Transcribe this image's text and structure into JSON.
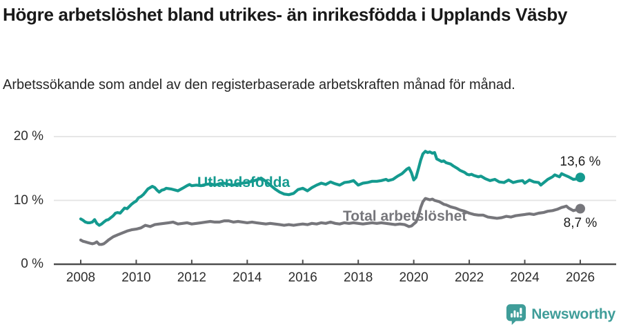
{
  "header": {
    "title": "Högre arbetslöshet bland utrikes- än inrikesfödda i Upplands Väsby",
    "subtitle": "Arbetssökande som andel av den registerbaserade arbetskraften månad för månad."
  },
  "footer": {
    "brand": "Newsworthy",
    "brand_color": "#3f9d99",
    "logo_icon": "newsworthy-speech-bubble-bar-chart-icon"
  },
  "chart_data": {
    "type": "line",
    "title": "Högre arbetslöshet bland utrikes- än inrikesfödda i Upplands Väsby",
    "subtitle": "Arbetssökande som andel av den registerbaserade arbetskraften månad för månad.",
    "unit": "%",
    "x_axis": {
      "ticks": [
        2008,
        2010,
        2012,
        2014,
        2016,
        2018,
        2020,
        2022,
        2024,
        2026
      ],
      "range": [
        2007.0,
        2027.3
      ]
    },
    "y_axis": {
      "ticks": [
        {
          "value": 0,
          "label": "0 %"
        },
        {
          "value": 10,
          "label": "10 %"
        },
        {
          "value": 20,
          "label": "20 %"
        }
      ],
      "range": [
        0,
        20
      ],
      "gridlines": [
        10,
        20
      ]
    },
    "legend_position": "inline",
    "series": [
      {
        "name": "Utlandsfödda",
        "color": "#149a8f",
        "end_value": 13.6,
        "end_value_label": "13,6 %",
        "points": [
          [
            2008.0,
            7.1
          ],
          [
            2008.08,
            6.9
          ],
          [
            2008.17,
            6.6
          ],
          [
            2008.25,
            6.5
          ],
          [
            2008.33,
            6.5
          ],
          [
            2008.42,
            6.6
          ],
          [
            2008.5,
            7.0
          ],
          [
            2008.58,
            6.4
          ],
          [
            2008.67,
            6.1
          ],
          [
            2008.75,
            6.3
          ],
          [
            2008.83,
            6.6
          ],
          [
            2008.92,
            6.9
          ],
          [
            2009.0,
            7.0
          ],
          [
            2009.17,
            7.6
          ],
          [
            2009.25,
            8.0
          ],
          [
            2009.33,
            8.1
          ],
          [
            2009.42,
            8.0
          ],
          [
            2009.58,
            8.8
          ],
          [
            2009.67,
            8.7
          ],
          [
            2009.83,
            9.4
          ],
          [
            2009.92,
            9.7
          ],
          [
            2010.0,
            9.9
          ],
          [
            2010.08,
            10.4
          ],
          [
            2010.17,
            10.6
          ],
          [
            2010.25,
            10.9
          ],
          [
            2010.33,
            11.3
          ],
          [
            2010.42,
            11.8
          ],
          [
            2010.5,
            12.0
          ],
          [
            2010.58,
            12.2
          ],
          [
            2010.67,
            12.0
          ],
          [
            2010.75,
            11.6
          ],
          [
            2010.83,
            11.3
          ],
          [
            2010.92,
            11.6
          ],
          [
            2011.0,
            11.7
          ],
          [
            2011.08,
            11.9
          ],
          [
            2011.25,
            11.8
          ],
          [
            2011.42,
            11.6
          ],
          [
            2011.5,
            11.5
          ],
          [
            2011.67,
            11.9
          ],
          [
            2011.83,
            12.3
          ],
          [
            2011.92,
            12.5
          ],
          [
            2012.0,
            12.3
          ],
          [
            2012.17,
            12.4
          ],
          [
            2012.33,
            12.3
          ],
          [
            2012.5,
            12.5
          ],
          [
            2012.67,
            12.6
          ],
          [
            2012.83,
            12.4
          ],
          [
            2013.0,
            12.6
          ],
          [
            2013.17,
            12.7
          ],
          [
            2013.33,
            12.5
          ],
          [
            2013.5,
            12.4
          ],
          [
            2013.67,
            12.6
          ],
          [
            2013.83,
            12.7
          ],
          [
            2014.0,
            12.8
          ],
          [
            2014.17,
            13.0
          ],
          [
            2014.33,
            13.2
          ],
          [
            2014.5,
            13.5
          ],
          [
            2014.67,
            13.0
          ],
          [
            2014.83,
            12.4
          ],
          [
            2015.0,
            11.8
          ],
          [
            2015.17,
            11.3
          ],
          [
            2015.33,
            11.0
          ],
          [
            2015.5,
            10.9
          ],
          [
            2015.67,
            11.1
          ],
          [
            2015.83,
            11.7
          ],
          [
            2016.0,
            11.9
          ],
          [
            2016.17,
            11.5
          ],
          [
            2016.33,
            12.0
          ],
          [
            2016.5,
            12.4
          ],
          [
            2016.67,
            12.7
          ],
          [
            2016.83,
            12.5
          ],
          [
            2017.0,
            12.9
          ],
          [
            2017.17,
            12.6
          ],
          [
            2017.33,
            12.4
          ],
          [
            2017.5,
            12.8
          ],
          [
            2017.67,
            12.9
          ],
          [
            2017.83,
            13.1
          ],
          [
            2018.0,
            12.4
          ],
          [
            2018.17,
            12.7
          ],
          [
            2018.33,
            12.8
          ],
          [
            2018.5,
            13.0
          ],
          [
            2018.67,
            13.0
          ],
          [
            2018.83,
            13.1
          ],
          [
            2019.0,
            13.3
          ],
          [
            2019.08,
            13.1
          ],
          [
            2019.25,
            13.3
          ],
          [
            2019.42,
            13.8
          ],
          [
            2019.58,
            14.2
          ],
          [
            2019.75,
            14.9
          ],
          [
            2019.83,
            15.1
          ],
          [
            2019.92,
            14.3
          ],
          [
            2020.0,
            13.2
          ],
          [
            2020.08,
            13.6
          ],
          [
            2020.17,
            15.0
          ],
          [
            2020.25,
            16.3
          ],
          [
            2020.33,
            17.3
          ],
          [
            2020.42,
            17.7
          ],
          [
            2020.5,
            17.5
          ],
          [
            2020.58,
            17.6
          ],
          [
            2020.67,
            17.4
          ],
          [
            2020.75,
            17.5
          ],
          [
            2020.83,
            16.5
          ],
          [
            2020.92,
            16.3
          ],
          [
            2021.0,
            16.1
          ],
          [
            2021.08,
            16.2
          ],
          [
            2021.17,
            15.9
          ],
          [
            2021.33,
            15.7
          ],
          [
            2021.42,
            15.4
          ],
          [
            2021.58,
            15.0
          ],
          [
            2021.67,
            14.7
          ],
          [
            2021.83,
            14.4
          ],
          [
            2021.92,
            14.1
          ],
          [
            2022.0,
            14.0
          ],
          [
            2022.08,
            14.1
          ],
          [
            2022.17,
            13.9
          ],
          [
            2022.33,
            13.7
          ],
          [
            2022.42,
            13.8
          ],
          [
            2022.58,
            13.4
          ],
          [
            2022.75,
            13.1
          ],
          [
            2022.92,
            13.3
          ],
          [
            2023.0,
            13.1
          ],
          [
            2023.08,
            12.9
          ],
          [
            2023.25,
            12.8
          ],
          [
            2023.42,
            13.2
          ],
          [
            2023.58,
            12.8
          ],
          [
            2023.75,
            13.0
          ],
          [
            2023.92,
            13.1
          ],
          [
            2024.0,
            12.7
          ],
          [
            2024.17,
            13.2
          ],
          [
            2024.33,
            12.9
          ],
          [
            2024.5,
            12.8
          ],
          [
            2024.58,
            12.4
          ],
          [
            2024.83,
            13.3
          ],
          [
            2025.0,
            13.7
          ],
          [
            2025.08,
            14.0
          ],
          [
            2025.25,
            13.7
          ],
          [
            2025.33,
            14.2
          ],
          [
            2025.42,
            14.0
          ],
          [
            2025.58,
            13.7
          ],
          [
            2025.75,
            13.3
          ],
          [
            2025.92,
            13.4
          ],
          [
            2026.0,
            13.6
          ]
        ]
      },
      {
        "name": "Total arbetslöshet",
        "color": "#76767b",
        "end_value": 8.7,
        "end_value_label": "8,7 %",
        "points": [
          [
            2008.0,
            3.8
          ],
          [
            2008.08,
            3.6
          ],
          [
            2008.17,
            3.5
          ],
          [
            2008.25,
            3.4
          ],
          [
            2008.33,
            3.3
          ],
          [
            2008.42,
            3.2
          ],
          [
            2008.5,
            3.3
          ],
          [
            2008.58,
            3.5
          ],
          [
            2008.67,
            3.1
          ],
          [
            2008.75,
            3.1
          ],
          [
            2008.83,
            3.2
          ],
          [
            2008.92,
            3.5
          ],
          [
            2009.0,
            3.8
          ],
          [
            2009.17,
            4.3
          ],
          [
            2009.33,
            4.6
          ],
          [
            2009.5,
            4.9
          ],
          [
            2009.67,
            5.2
          ],
          [
            2009.83,
            5.4
          ],
          [
            2010.0,
            5.5
          ],
          [
            2010.17,
            5.7
          ],
          [
            2010.33,
            6.1
          ],
          [
            2010.5,
            5.9
          ],
          [
            2010.67,
            6.2
          ],
          [
            2010.83,
            6.3
          ],
          [
            2011.0,
            6.4
          ],
          [
            2011.17,
            6.5
          ],
          [
            2011.33,
            6.6
          ],
          [
            2011.5,
            6.3
          ],
          [
            2011.67,
            6.4
          ],
          [
            2011.83,
            6.5
          ],
          [
            2012.0,
            6.3
          ],
          [
            2012.17,
            6.4
          ],
          [
            2012.33,
            6.5
          ],
          [
            2012.5,
            6.6
          ],
          [
            2012.67,
            6.7
          ],
          [
            2012.83,
            6.6
          ],
          [
            2013.0,
            6.6
          ],
          [
            2013.17,
            6.8
          ],
          [
            2013.33,
            6.8
          ],
          [
            2013.5,
            6.6
          ],
          [
            2013.67,
            6.7
          ],
          [
            2013.83,
            6.6
          ],
          [
            2014.0,
            6.5
          ],
          [
            2014.17,
            6.6
          ],
          [
            2014.33,
            6.5
          ],
          [
            2014.5,
            6.4
          ],
          [
            2014.67,
            6.3
          ],
          [
            2014.83,
            6.4
          ],
          [
            2015.0,
            6.3
          ],
          [
            2015.17,
            6.2
          ],
          [
            2015.33,
            6.1
          ],
          [
            2015.5,
            6.2
          ],
          [
            2015.67,
            6.1
          ],
          [
            2015.83,
            6.2
          ],
          [
            2016.0,
            6.3
          ],
          [
            2016.17,
            6.2
          ],
          [
            2016.33,
            6.4
          ],
          [
            2016.5,
            6.3
          ],
          [
            2016.67,
            6.5
          ],
          [
            2016.83,
            6.4
          ],
          [
            2017.0,
            6.6
          ],
          [
            2017.17,
            6.4
          ],
          [
            2017.33,
            6.3
          ],
          [
            2017.5,
            6.5
          ],
          [
            2017.67,
            6.4
          ],
          [
            2017.83,
            6.5
          ],
          [
            2018.0,
            6.4
          ],
          [
            2018.17,
            6.3
          ],
          [
            2018.33,
            6.4
          ],
          [
            2018.5,
            6.5
          ],
          [
            2018.67,
            6.4
          ],
          [
            2018.83,
            6.5
          ],
          [
            2019.0,
            6.4
          ],
          [
            2019.17,
            6.3
          ],
          [
            2019.33,
            6.2
          ],
          [
            2019.5,
            6.3
          ],
          [
            2019.67,
            6.2
          ],
          [
            2019.83,
            5.9
          ],
          [
            2019.92,
            6.0
          ],
          [
            2020.0,
            6.3
          ],
          [
            2020.08,
            6.6
          ],
          [
            2020.17,
            7.6
          ],
          [
            2020.25,
            8.9
          ],
          [
            2020.33,
            9.8
          ],
          [
            2020.42,
            10.3
          ],
          [
            2020.5,
            10.2
          ],
          [
            2020.58,
            10.1
          ],
          [
            2020.67,
            10.2
          ],
          [
            2020.75,
            10.0
          ],
          [
            2020.83,
            9.9
          ],
          [
            2020.92,
            9.8
          ],
          [
            2021.0,
            9.6
          ],
          [
            2021.08,
            9.4
          ],
          [
            2021.17,
            9.3
          ],
          [
            2021.33,
            9.0
          ],
          [
            2021.5,
            8.8
          ],
          [
            2021.67,
            8.5
          ],
          [
            2021.83,
            8.3
          ],
          [
            2022.0,
            8.0
          ],
          [
            2022.17,
            7.8
          ],
          [
            2022.33,
            7.7
          ],
          [
            2022.5,
            7.7
          ],
          [
            2022.67,
            7.4
          ],
          [
            2022.83,
            7.3
          ],
          [
            2023.0,
            7.2
          ],
          [
            2023.17,
            7.3
          ],
          [
            2023.33,
            7.5
          ],
          [
            2023.5,
            7.4
          ],
          [
            2023.67,
            7.6
          ],
          [
            2023.83,
            7.7
          ],
          [
            2024.0,
            7.8
          ],
          [
            2024.17,
            7.9
          ],
          [
            2024.33,
            7.8
          ],
          [
            2024.5,
            8.0
          ],
          [
            2024.67,
            8.1
          ],
          [
            2024.83,
            8.3
          ],
          [
            2025.0,
            8.4
          ],
          [
            2025.17,
            8.6
          ],
          [
            2025.33,
            8.9
          ],
          [
            2025.42,
            9.0
          ],
          [
            2025.5,
            9.1
          ],
          [
            2025.58,
            8.8
          ],
          [
            2025.75,
            8.4
          ],
          [
            2025.92,
            8.6
          ],
          [
            2026.0,
            8.7
          ]
        ]
      }
    ]
  }
}
